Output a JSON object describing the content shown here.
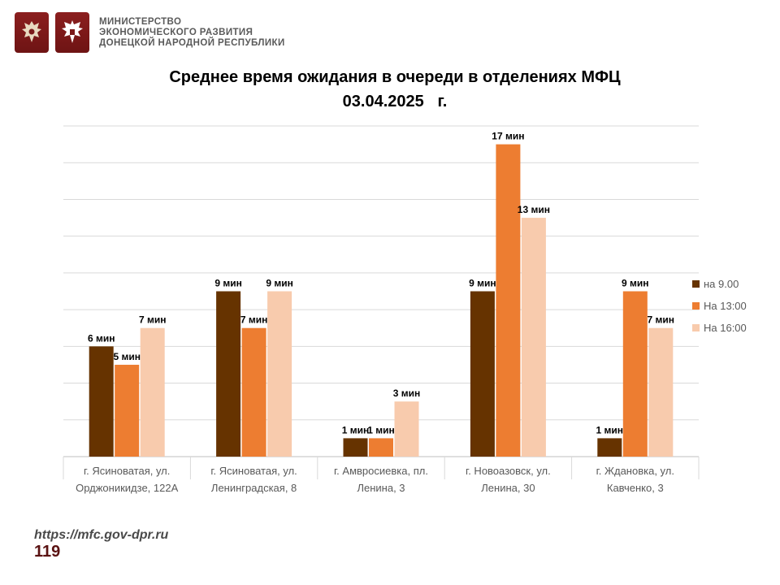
{
  "header": {
    "ministry_lines": [
      "МИНИСТЕРСТВО",
      "ЭКОНОМИЧЕСКОГО РАЗВИТИЯ",
      "ДОНЕЦКОЙ НАРОДНОЙ РЕСПУБЛИКИ"
    ],
    "emblem_color": "#7a1a1a"
  },
  "footer": {
    "url": "https://mfc.gov-dpr.ru",
    "page_number": "119"
  },
  "chart_data": {
    "type": "bar",
    "title": "Среднее время ожидания в очереди в отделениях МФЦ",
    "subtitle": "03.04.2025   г.",
    "categories": [
      [
        "г. Ясиноватая, ул.",
        "Орджоникидзе, 122А"
      ],
      [
        "г. Ясиноватая, ул.",
        "Ленинградская, 8"
      ],
      [
        "г. Амвросиевка, пл.",
        "Ленина, 3"
      ],
      [
        "г. Новоазовск, ул.",
        "Ленина, 30"
      ],
      [
        "г. Ждановка, ул.",
        "Кавченко, 3"
      ]
    ],
    "series": [
      {
        "name": "на 9.00",
        "color": "#663300",
        "values": [
          6,
          9,
          1,
          9,
          1
        ]
      },
      {
        "name": "На 13:00",
        "color": "#ED7D31",
        "values": [
          5,
          7,
          1,
          17,
          9
        ]
      },
      {
        "name": "На 16:00",
        "color": "#F8CBAD",
        "values": [
          7,
          9,
          3,
          13,
          7
        ]
      }
    ],
    "data_labels": [
      [
        "6 мин",
        "9 мин",
        "1 мин",
        "9 мин",
        "1 мин"
      ],
      [
        "5 мин",
        "7 мин",
        "1 мин",
        "17 мин",
        "9 мин"
      ],
      [
        "7 мин",
        "9 мин",
        "3 мин",
        "13 мин",
        "7 мин"
      ]
    ],
    "ylim": [
      0,
      18
    ],
    "grid": true,
    "legend_position": "right"
  }
}
